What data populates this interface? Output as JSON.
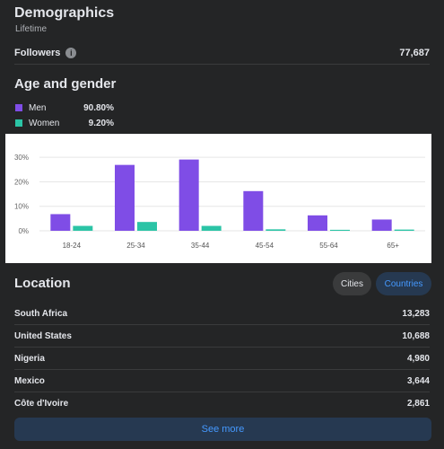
{
  "header": {
    "title": "Demographics",
    "subtitle": "Lifetime"
  },
  "followers": {
    "label": "Followers",
    "value": "77,687",
    "info_icon": "info-icon"
  },
  "age_gender": {
    "heading": "Age and gender",
    "legend": [
      {
        "name": "Men",
        "pct": "90.80%",
        "color": "#7f4de6"
      },
      {
        "name": "Women",
        "pct": "9.20%",
        "color": "#2bc4a6"
      }
    ]
  },
  "chart_data": {
    "type": "bar",
    "categories": [
      "18-24",
      "25-34",
      "35-44",
      "45-54",
      "55-64",
      "65+"
    ],
    "series": [
      {
        "name": "Men",
        "color": "#7f4de6",
        "values": [
          6.8,
          26.9,
          29.1,
          16.2,
          6.3,
          4.6
        ]
      },
      {
        "name": "Women",
        "color": "#2bc4a6",
        "values": [
          2.0,
          3.6,
          2.0,
          0.6,
          0.4,
          0.5
        ]
      }
    ],
    "ylim": [
      0,
      33
    ],
    "yticks": [
      "0%",
      "10%",
      "20%",
      "30%"
    ],
    "ytick_values": [
      0,
      10,
      20,
      30
    ],
    "grid": true
  },
  "location": {
    "heading": "Location",
    "tabs": [
      {
        "label": "Cities",
        "active": false
      },
      {
        "label": "Countries",
        "active": true
      }
    ],
    "rows": [
      {
        "name": "South Africa",
        "value": "13,283"
      },
      {
        "name": "United States",
        "value": "10,688"
      },
      {
        "name": "Nigeria",
        "value": "4,980"
      },
      {
        "name": "Mexico",
        "value": "3,644"
      },
      {
        "name": "Côte d'Ivoire",
        "value": "2,861"
      }
    ],
    "see_more": "See more"
  }
}
